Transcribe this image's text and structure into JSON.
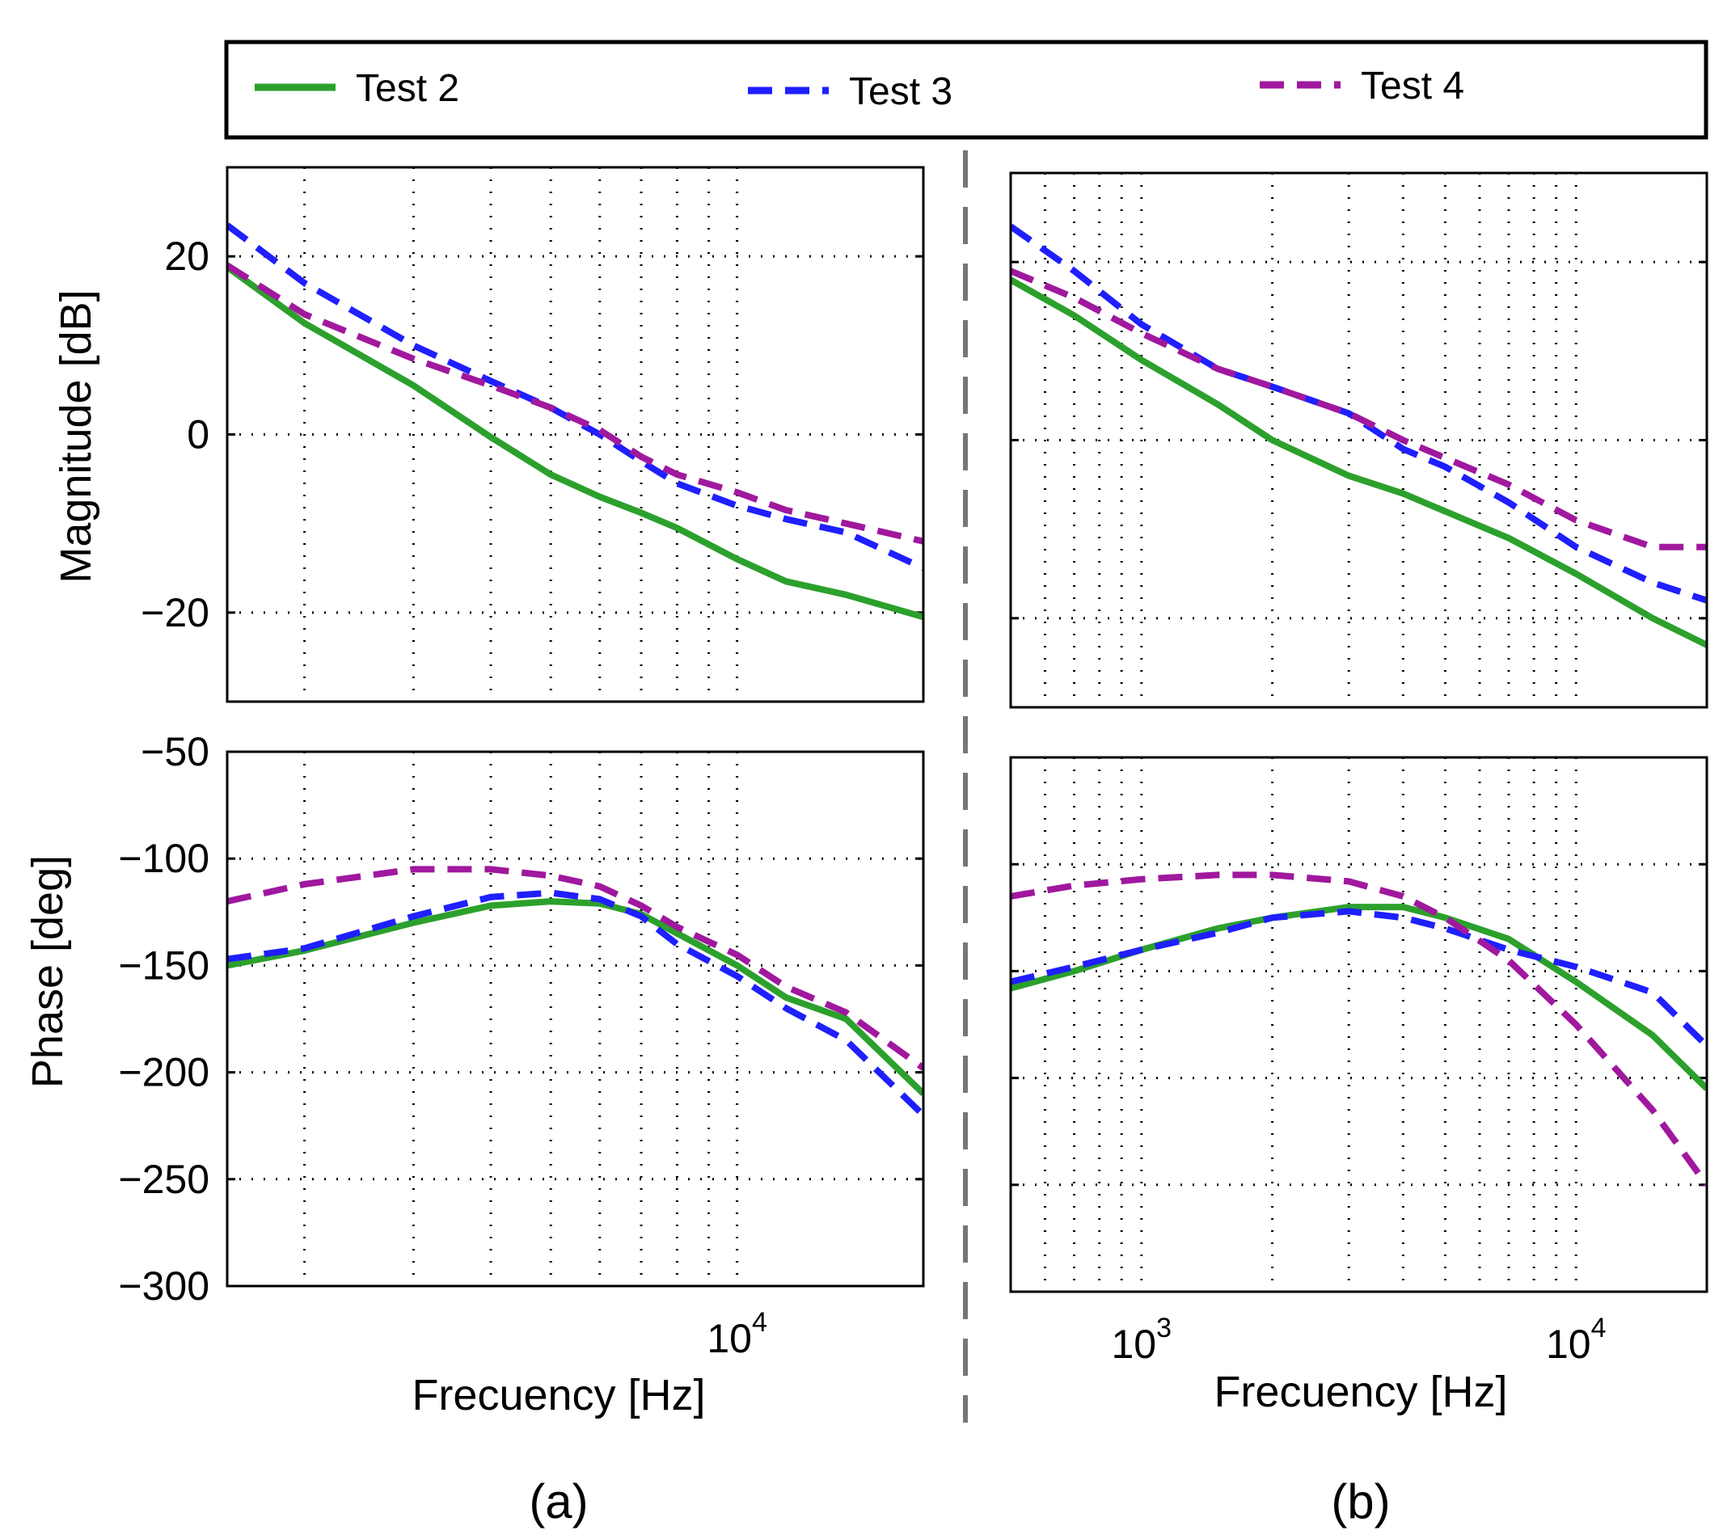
{
  "legend": {
    "items": [
      {
        "label": "Test 2",
        "color": "#2ca02c",
        "dash": "solid"
      },
      {
        "label": "Test 3",
        "color": "#1f1fff",
        "dash": "dashed"
      },
      {
        "label": "Test 4",
        "color": "#a0189e",
        "dash": "dashed"
      }
    ]
  },
  "panel_labels": {
    "a": "(a)",
    "b": "(b)"
  },
  "axis_labels": {
    "magnitude": "Magnitude  [dB]",
    "phase": "Phase  [deg]",
    "frequency_a": "Frecuency [Hz]",
    "frequency_b": "Frecuency [Hz]"
  },
  "chart_data": [
    {
      "id": "a-mag",
      "type": "line",
      "panel": "(a)",
      "xscale": "log",
      "xlim": [
        1500,
        20000
      ],
      "ylim": [
        -30,
        30
      ],
      "yticks": [
        -20,
        0,
        20
      ],
      "ytick_labels": [
        "−20",
        "0",
        "20"
      ],
      "xticks": [],
      "xtick_labels": [],
      "grid": true,
      "series": [
        {
          "name": "Test 2",
          "x": [
            1500,
            2000,
            3000,
            4000,
            5000,
            6000,
            7000,
            8000,
            10000,
            12000,
            15000,
            20000
          ],
          "y": [
            18.8,
            12.5,
            5.5,
            -0.3,
            -4.5,
            -7.0,
            -8.8,
            -10.5,
            -14.0,
            -16.5,
            -18.0,
            -20.5
          ]
        },
        {
          "name": "Test 3",
          "x": [
            1500,
            2000,
            3000,
            4000,
            5000,
            6000,
            7000,
            8000,
            10000,
            12000,
            15000,
            20000
          ],
          "y": [
            23.5,
            17.0,
            10.0,
            6.0,
            3.0,
            0.0,
            -3.0,
            -5.5,
            -8.0,
            -9.5,
            -11.0,
            -15.0
          ]
        },
        {
          "name": "Test 4",
          "x": [
            1500,
            2000,
            3000,
            4000,
            5000,
            6000,
            7000,
            8000,
            10000,
            12000,
            15000,
            20000
          ],
          "y": [
            19.0,
            13.5,
            8.5,
            5.5,
            3.0,
            0.5,
            -2.5,
            -4.5,
            -6.5,
            -8.5,
            -10.0,
            -12.0
          ]
        }
      ]
    },
    {
      "id": "a-phase",
      "type": "line",
      "panel": "(a)",
      "xscale": "log",
      "xlim": [
        1500,
        20000
      ],
      "ylim": [
        -300,
        -50
      ],
      "yticks": [
        -300,
        -250,
        -200,
        -150,
        -100,
        -50
      ],
      "ytick_labels": [
        "−300",
        "−250",
        "−200",
        "−150",
        "−100",
        "−50"
      ],
      "xticks": [
        10000
      ],
      "xtick_labels": [
        "10<sup>4</sup>"
      ],
      "grid": true,
      "series": [
        {
          "name": "Test 2",
          "x": [
            1500,
            2000,
            3000,
            4000,
            5000,
            6000,
            7000,
            8000,
            10000,
            12000,
            15000,
            20000
          ],
          "y": [
            -150,
            -143,
            -130,
            -122,
            -120,
            -121,
            -126,
            -135,
            -150,
            -165,
            -175,
            -210
          ]
        },
        {
          "name": "Test 3",
          "x": [
            1500,
            2000,
            3000,
            4000,
            5000,
            6000,
            7000,
            8000,
            10000,
            12000,
            15000,
            20000
          ],
          "y": [
            -147,
            -142,
            -127,
            -118,
            -116,
            -119,
            -127,
            -140,
            -155,
            -170,
            -185,
            -220
          ]
        },
        {
          "name": "Test 4",
          "x": [
            1500,
            2000,
            3000,
            4000,
            5000,
            6000,
            7000,
            8000,
            10000,
            12000,
            15000,
            20000
          ],
          "y": [
            -120,
            -112,
            -105,
            -105,
            -108,
            -113,
            -122,
            -132,
            -145,
            -160,
            -172,
            -198
          ]
        }
      ]
    },
    {
      "id": "b-mag",
      "type": "line",
      "panel": "(b)",
      "xscale": "log",
      "xlim": [
        500,
        20000
      ],
      "ylim": [
        -30,
        30
      ],
      "yticks": [
        -20,
        0,
        20
      ],
      "ytick_labels": [],
      "xticks": [],
      "xtick_labels": [],
      "grid": true,
      "series": [
        {
          "name": "Test 2",
          "x": [
            500,
            700,
            1000,
            1500,
            2000,
            3000,
            4000,
            5000,
            7000,
            10000,
            15000,
            20000
          ],
          "y": [
            18,
            14,
            9,
            4,
            0,
            -4,
            -6,
            -8,
            -11,
            -15,
            -20,
            -23
          ]
        },
        {
          "name": "Test 3",
          "x": [
            500,
            700,
            1000,
            1500,
            2000,
            3000,
            4000,
            5000,
            7000,
            10000,
            15000,
            20000
          ],
          "y": [
            24,
            19,
            13,
            8,
            6,
            3,
            -1,
            -3,
            -7,
            -12,
            -16,
            -18
          ]
        },
        {
          "name": "Test 4",
          "x": [
            500,
            700,
            1000,
            1500,
            2000,
            3000,
            4000,
            5000,
            7000,
            10000,
            15000,
            20000
          ],
          "y": [
            19,
            16,
            12,
            8,
            6,
            3,
            0,
            -2,
            -5,
            -9,
            -12,
            -12
          ]
        }
      ]
    },
    {
      "id": "b-phase",
      "type": "line",
      "panel": "(b)",
      "xscale": "log",
      "xlim": [
        500,
        20000
      ],
      "ylim": [
        -300,
        -50
      ],
      "yticks": [
        -300,
        -250,
        -200,
        -150,
        -100,
        -50
      ],
      "ytick_labels": [],
      "xticks": [
        1000,
        10000
      ],
      "xtick_labels": [
        "10<sup>3</sup>",
        "10<sup>4</sup>"
      ],
      "grid": true,
      "series": [
        {
          "name": "Test 2",
          "x": [
            500,
            700,
            1000,
            1500,
            2000,
            3000,
            4000,
            5000,
            7000,
            10000,
            15000,
            20000
          ],
          "y": [
            -158,
            -150,
            -140,
            -130,
            -125,
            -120,
            -120,
            -125,
            -135,
            -155,
            -180,
            -205
          ]
        },
        {
          "name": "Test 3",
          "x": [
            500,
            700,
            1000,
            1500,
            2000,
            3000,
            4000,
            5000,
            7000,
            10000,
            15000,
            20000
          ],
          "y": [
            -155,
            -148,
            -140,
            -132,
            -125,
            -122,
            -125,
            -130,
            -140,
            -148,
            -160,
            -185
          ]
        },
        {
          "name": "Test 4",
          "x": [
            500,
            700,
            1000,
            1500,
            2000,
            3000,
            4000,
            5000,
            7000,
            10000,
            15000,
            20000
          ],
          "y": [
            -115,
            -110,
            -107,
            -105,
            -105,
            -108,
            -115,
            -125,
            -145,
            -175,
            -215,
            -250
          ]
        }
      ]
    }
  ]
}
